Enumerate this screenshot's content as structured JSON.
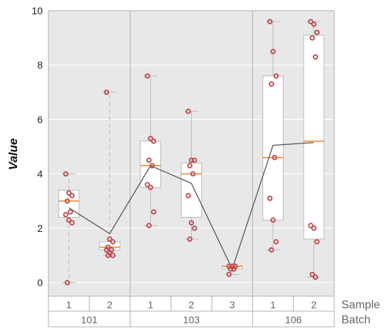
{
  "chart_data": {
    "type": "box",
    "ylabel": "Value",
    "ylim": [
      -0.5,
      10
    ],
    "yticks": [
      0,
      2,
      4,
      6,
      8,
      10
    ],
    "grid": true,
    "row_labels": {
      "sample": "Sample",
      "batch": "Batch"
    },
    "batches": [
      {
        "label": "101",
        "samples": [
          "1",
          "2"
        ]
      },
      {
        "label": "103",
        "samples": [
          "1",
          "2",
          "3"
        ]
      },
      {
        "label": "106",
        "samples": [
          "1",
          "2"
        ]
      }
    ],
    "groups": [
      {
        "batch": "101",
        "sample": "1",
        "q1": 2.4,
        "median": 3.0,
        "q3": 3.4,
        "whisker_low": 0.0,
        "whisker_high": 4.0,
        "points": [
          4.0,
          3.3,
          3.2,
          3.0,
          2.6,
          2.5,
          2.3,
          2.2,
          0.0
        ]
      },
      {
        "batch": "101",
        "sample": "2",
        "q1": 1.2,
        "median": 1.3,
        "q3": 1.5,
        "whisker_low": 1.0,
        "whisker_high": 7.0,
        "points": [
          7.0,
          1.6,
          1.5,
          1.3,
          1.2,
          1.2,
          1.1,
          1.0,
          1.0
        ]
      },
      {
        "batch": "103",
        "sample": "1",
        "q1": 3.5,
        "median": 4.3,
        "q3": 5.2,
        "whisker_low": 2.1,
        "whisker_high": 7.6,
        "points": [
          7.6,
          5.3,
          5.2,
          4.5,
          4.3,
          3.6,
          3.5,
          2.6,
          2.1
        ]
      },
      {
        "batch": "103",
        "sample": "2",
        "q1": 2.4,
        "median": 4.0,
        "q3": 4.4,
        "whisker_low": 1.6,
        "whisker_high": 6.3,
        "points": [
          6.3,
          4.5,
          4.5,
          4.3,
          4.0,
          3.2,
          2.2,
          2.0,
          1.6
        ]
      },
      {
        "batch": "103",
        "sample": "3",
        "q1": 0.5,
        "median": 0.6,
        "q3": 0.6,
        "whisker_low": 0.3,
        "whisker_high": 0.6,
        "points": [
          0.6,
          0.6,
          0.6,
          0.5,
          0.5,
          0.3
        ]
      },
      {
        "batch": "106",
        "sample": "1",
        "q1": 2.3,
        "median": 4.6,
        "q3": 7.6,
        "whisker_low": 1.2,
        "whisker_high": 9.6,
        "points": [
          9.6,
          8.5,
          7.6,
          7.3,
          4.6,
          3.1,
          2.3,
          1.5,
          1.2
        ]
      },
      {
        "batch": "106",
        "sample": "2",
        "q1": 1.6,
        "median": 5.2,
        "q3": 9.1,
        "whisker_low": 0.2,
        "whisker_high": 9.6,
        "points": [
          9.6,
          9.5,
          9.2,
          9.0,
          8.3,
          2.1,
          2.0,
          1.5,
          0.3,
          0.2
        ]
      }
    ],
    "mean_line": [
      2.75,
      1.8,
      4.3,
      3.65,
      0.5,
      5.05,
      5.15
    ],
    "colors": {
      "background": "#e8e8e8",
      "grid": "#ffffff",
      "box_fill": "#ffffff",
      "box_edge": "#bbbbbb",
      "median": "#f07f2a",
      "point": "#c0454a",
      "mean_line": "#555555",
      "separator": "#b0b0b0"
    }
  }
}
